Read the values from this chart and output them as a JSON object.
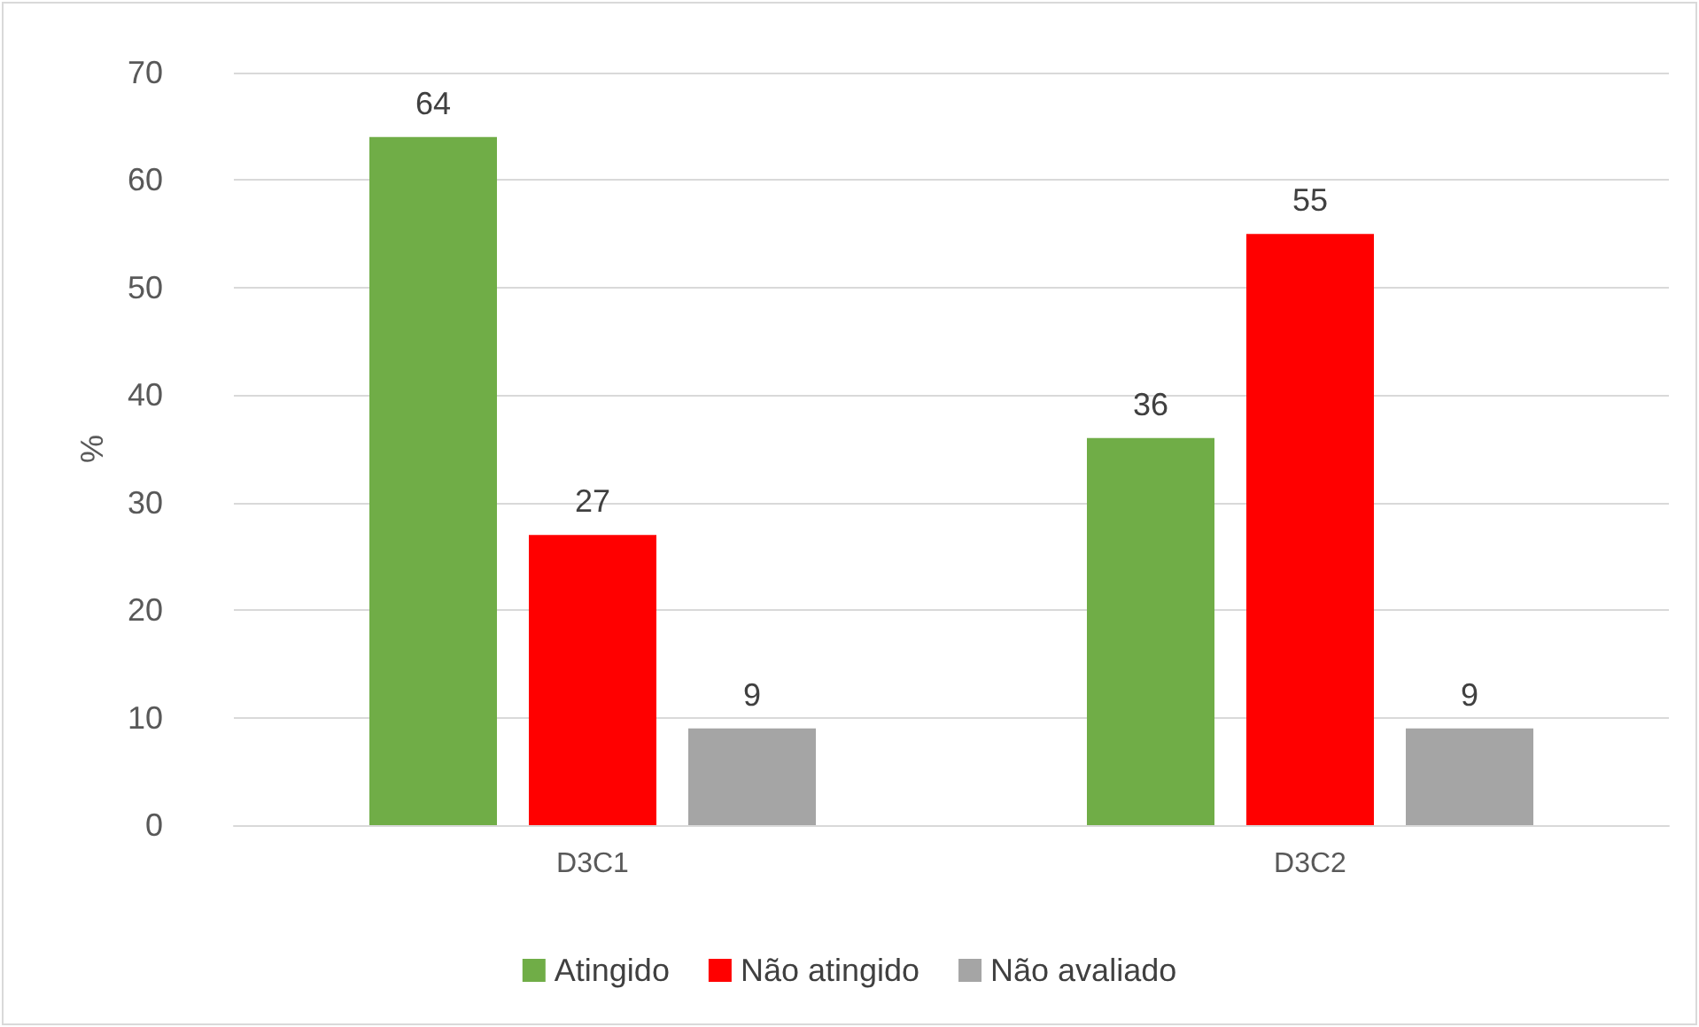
{
  "chart_data": {
    "type": "bar",
    "ylabel": "%",
    "categories": [
      "D3C1",
      "D3C2"
    ],
    "series": [
      {
        "name": "Atingido",
        "color": "#70ad47",
        "values": [
          64,
          36
        ]
      },
      {
        "name": "Não atingido",
        "color": "#ff0000",
        "values": [
          27,
          55
        ]
      },
      {
        "name": "Não avaliado",
        "color": "#a5a5a5",
        "values": [
          9,
          9
        ]
      }
    ],
    "ylim": [
      0,
      70
    ],
    "yticks": [
      0,
      10,
      20,
      30,
      40,
      50,
      60,
      70
    ],
    "grid": "y",
    "legend": "bottom",
    "data_labels": true
  }
}
